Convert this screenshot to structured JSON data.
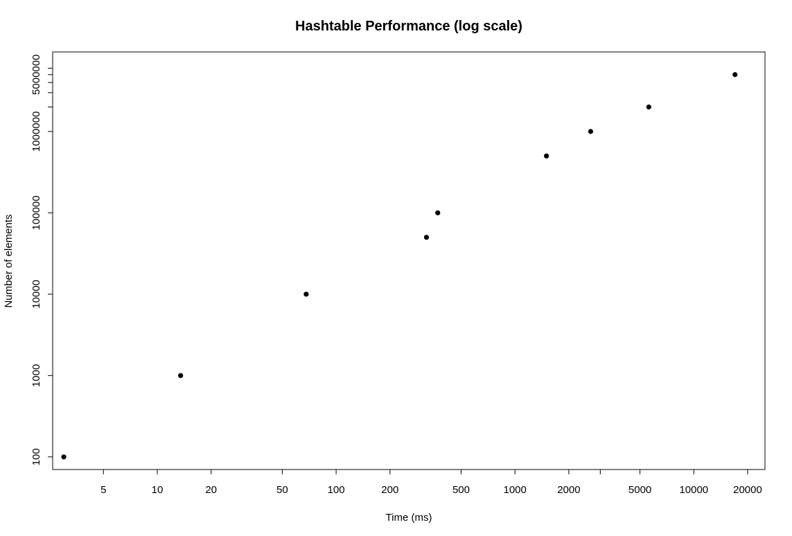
{
  "chart_data": {
    "type": "scatter",
    "title": "Hashtable Performance (log scale)",
    "xlabel": "Time (ms)",
    "ylabel": "Number of elements",
    "x_scale": "log",
    "y_scale": "log",
    "xlim": [
      2.6,
      25000
    ],
    "ylim": [
      70,
      9500000
    ],
    "x_ticks": [
      5,
      10,
      20,
      50,
      100,
      200,
      500,
      1000,
      2000,
      5000,
      10000,
      20000
    ],
    "x_tick_labels": [
      "5",
      "10",
      "20",
      "50",
      "100",
      "200",
      "500",
      "1000",
      "2000",
      "5000",
      "10000",
      "20000"
    ],
    "x_minor_ticks": [
      3000
    ],
    "y_ticks": [
      100,
      1000,
      10000,
      100000,
      1000000,
      5000000
    ],
    "y_tick_labels": [
      "100",
      "1000",
      "10000",
      "100000",
      "1000000",
      "5000000"
    ],
    "y_minor_ticks": [
      2000000,
      3000000,
      4000000,
      6000000
    ],
    "grid": false,
    "marker_color": "#000000",
    "points": [
      {
        "x": 3,
        "y": 100
      },
      {
        "x": 13.5,
        "y": 1000
      },
      {
        "x": 68,
        "y": 10000
      },
      {
        "x": 320,
        "y": 50000
      },
      {
        "x": 370,
        "y": 100000
      },
      {
        "x": 1500,
        "y": 500000
      },
      {
        "x": 2650,
        "y": 1000000
      },
      {
        "x": 5600,
        "y": 2000000
      },
      {
        "x": 17000,
        "y": 5000000
      }
    ]
  }
}
